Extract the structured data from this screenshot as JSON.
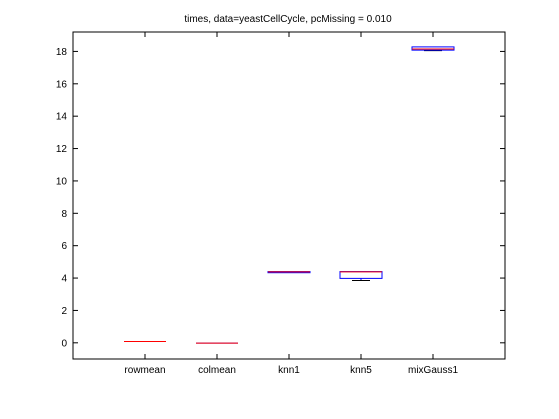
{
  "chart_data": {
    "type": "box",
    "title": "times, data=yeastCellCycle, pcMissing = 0.010",
    "xlabel": "",
    "ylabel": "",
    "categories": [
      "rowmean",
      "colmean",
      "knn1",
      "knn5",
      "mixGauss1"
    ],
    "ylim": [
      -1,
      19.2
    ],
    "yticks": [
      0,
      2,
      4,
      6,
      8,
      10,
      12,
      14,
      16,
      18
    ],
    "grid": false,
    "boxes": [
      {
        "name": "rowmean",
        "q1": 0.08,
        "median": 0.08,
        "q3": 0.08,
        "whisker_low": 0.08,
        "whisker_high": 0.08
      },
      {
        "name": "colmean",
        "q1": -0.02,
        "median": -0.02,
        "q3": -0.02,
        "whisker_low": -0.02,
        "whisker_high": -0.02
      },
      {
        "name": "knn1",
        "q1": 4.33,
        "median": 4.38,
        "q3": 4.4,
        "whisker_low": 4.33,
        "whisker_high": 4.4
      },
      {
        "name": "knn5",
        "q1": 3.98,
        "median": 4.38,
        "q3": 4.4,
        "whisker_low": 3.85,
        "whisker_high": 4.4
      },
      {
        "name": "mixGauss1",
        "q1": 18.08,
        "median": 18.15,
        "q3": 18.28,
        "whisker_low": 18.05,
        "whisker_high": 18.28
      }
    ],
    "colors": {
      "box": "#0000ff",
      "median": "#ff0000",
      "axis": "#000000"
    }
  }
}
